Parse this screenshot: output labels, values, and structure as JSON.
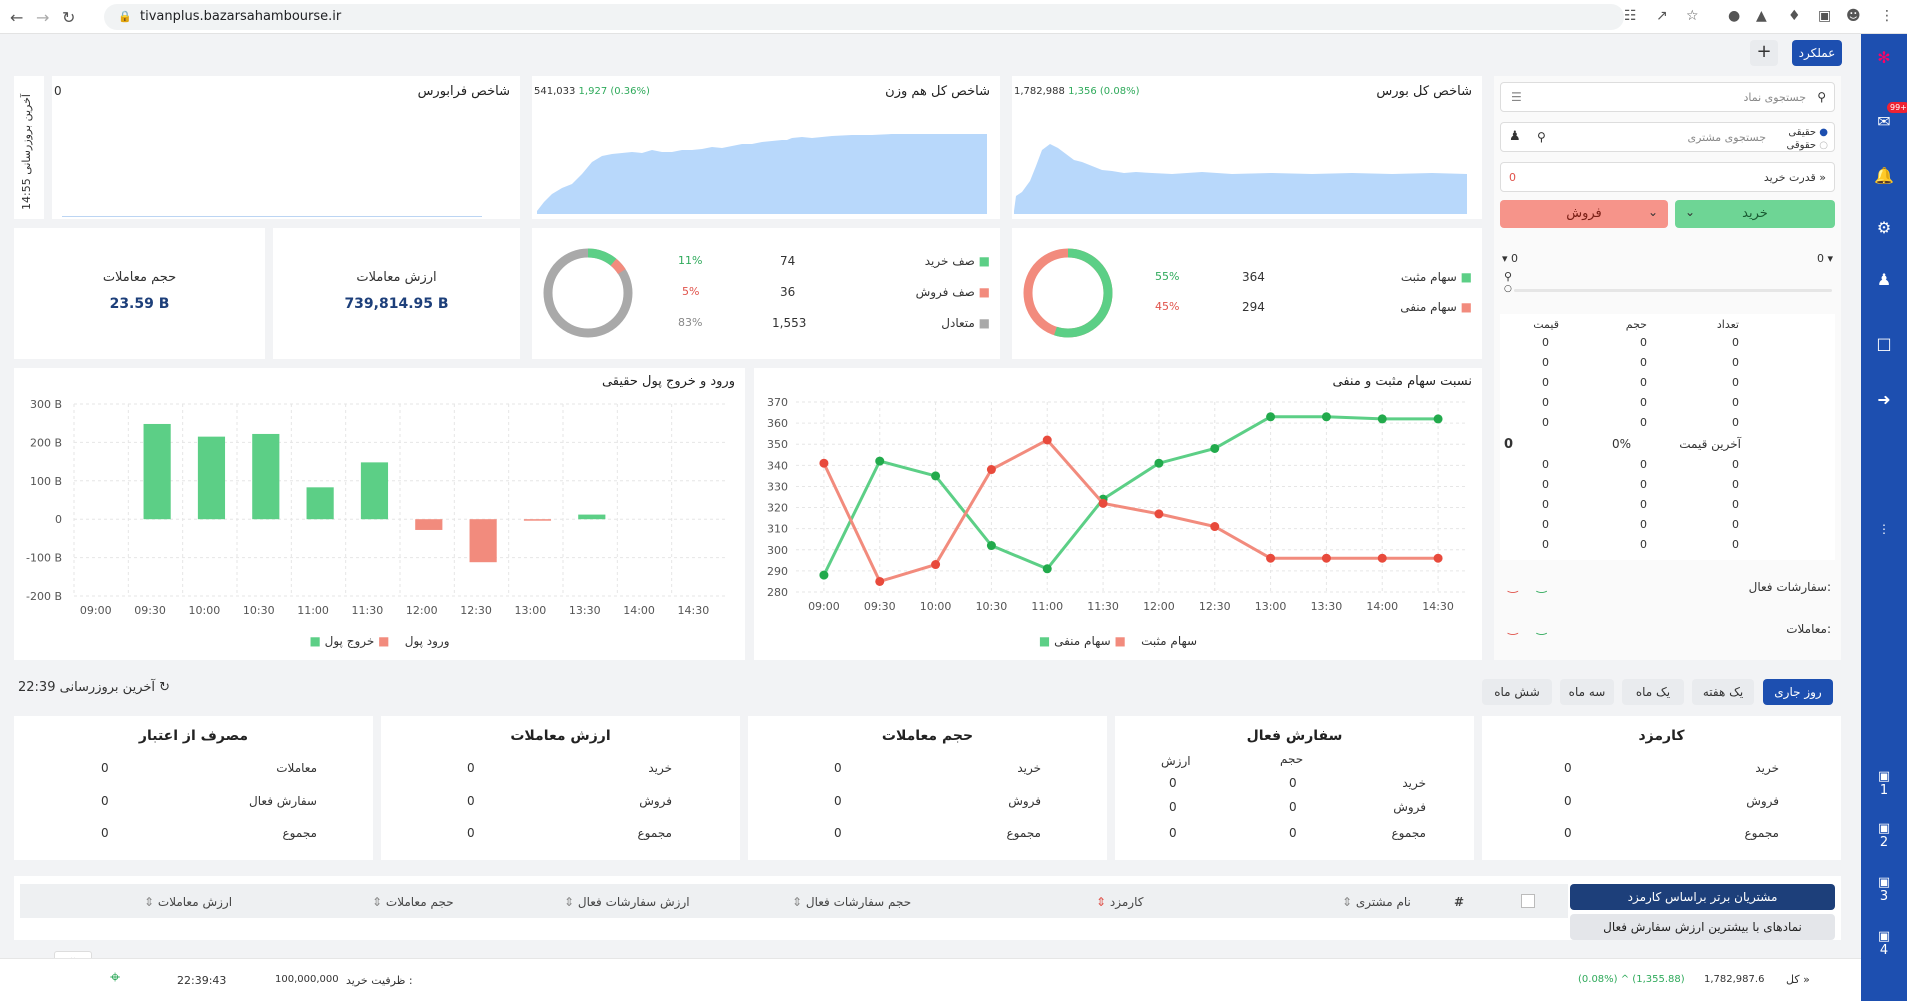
{
  "browser": {
    "url": "tivanplus.bazarsahambourse.ir"
  },
  "top": {
    "amalkard": "عملکرد",
    "plus": "+"
  },
  "sidebar": {
    "badge": "99+",
    "monitors": [
      "1",
      "2",
      "3",
      "4"
    ]
  },
  "indices": {
    "kol": {
      "title": "شاخص کل بورس",
      "value": "1,782,988",
      "change": "1,356 (0.08%)"
    },
    "hamvazn": {
      "title": "شاخص کل هم وزن",
      "value": "541,033",
      "change": "1,927 (0.36%)"
    },
    "farabourse": {
      "title": "شاخص فرابورس",
      "value": "0",
      "last_update": "آخرین بروزرسانی",
      "time": "14:55"
    }
  },
  "breadth": {
    "pos_label": "سهام مثبت",
    "pos_count": "364",
    "pos_pct": "55%",
    "neg_label": "سهام منفی",
    "neg_count": "294",
    "neg_pct": "45%",
    "pos_share": 0.55
  },
  "queues": {
    "buy_label": "صف خرید",
    "buy_count": "74",
    "buy_pct": "11%",
    "sell_label": "صف فروش",
    "sell_count": "36",
    "sell_pct": "5%",
    "bal_label": "متعادل",
    "bal_count": "1,553",
    "bal_pct": "83%",
    "buy_share": 0.11,
    "sell_share": 0.05
  },
  "trade_value": {
    "label": "ارزش معاملات",
    "value": "739,814.95 B"
  },
  "trade_volume": {
    "label": "حجم معاملات",
    "value": "23.59 B"
  },
  "chart_data": [
    {
      "type": "line",
      "title": "نسبت سهام مثبت و منفی",
      "x": [
        "09:00",
        "09:30",
        "10:00",
        "10:30",
        "11:00",
        "11:30",
        "12:00",
        "12:30",
        "13:00",
        "13:30",
        "14:00",
        "14:30"
      ],
      "yticks": [
        "370",
        "360",
        "350",
        "340",
        "330",
        "320",
        "310",
        "300",
        "290",
        "280"
      ],
      "ylim": [
        280,
        370
      ],
      "series": [
        {
          "name": "سهام مثبت",
          "color": "#5ccf86",
          "values": [
            288,
            342,
            335,
            302,
            291,
            324,
            341,
            348,
            363,
            363,
            362,
            362
          ]
        },
        {
          "name": "سهام منفی",
          "color": "#f28b7d",
          "values": [
            341,
            285,
            293,
            338,
            352,
            322,
            317,
            311,
            296,
            296,
            296,
            296
          ]
        }
      ],
      "legend": "bottom"
    },
    {
      "type": "bar",
      "title": "ورود و خروج پول حقیقی",
      "categories": [
        "09:00",
        "09:30",
        "10:00",
        "10:30",
        "11:00",
        "11:30",
        "12:00",
        "12:30",
        "13:00",
        "13:30",
        "14:00",
        "14:30"
      ],
      "yticks": [
        "300 B",
        "200 B",
        "100 B",
        "0",
        "-100 B",
        "-200 B"
      ],
      "ylim": [
        -200,
        300
      ],
      "series": [
        {
          "name": "ورود پول",
          "color": "#5ccf86",
          "values": [
            0,
            248,
            215,
            222,
            83,
            148,
            0,
            0,
            0,
            12,
            0,
            0
          ]
        },
        {
          "name": "خروج پول",
          "color": "#f28b7d",
          "values": [
            0,
            0,
            0,
            0,
            0,
            0,
            -28,
            -112,
            -3,
            0,
            0,
            0
          ]
        }
      ],
      "legend": "bottom"
    }
  ],
  "right": {
    "search_symbol": "جستجوی نماد",
    "search_client": "جستجوی مشتری",
    "haghighi": "حقیقی",
    "hoghooghi": "حقوقی",
    "buy_power_label": "قدرت خرید",
    "buy_power": "0",
    "buy": "خرید",
    "sell": "فروش",
    "left_val": "0",
    "right_val": "0",
    "ob_headers": [
      "تعداد",
      "حجم",
      "قیمت"
    ],
    "ob_rows": [
      [
        "0",
        "0",
        "0"
      ],
      [
        "0",
        "0",
        "0"
      ],
      [
        "0",
        "0",
        "0"
      ],
      [
        "0",
        "0",
        "0"
      ],
      [
        "0",
        "0",
        "0"
      ]
    ],
    "last_price_label": "آخرین قیمت",
    "last_price": "0",
    "last_pct": "0%",
    "ob_rows2": [
      [
        "0",
        "0",
        "0"
      ],
      [
        "0",
        "0",
        "0"
      ],
      [
        "0",
        "0",
        "0"
      ],
      [
        "0",
        "0",
        "0"
      ],
      [
        "0",
        "0",
        "0"
      ]
    ],
    "active_orders": "سفارشات فعال:",
    "trades": "معاملات:"
  },
  "periods": {
    "current_day": "روز جاری",
    "week": "یک هفته",
    "month": "یک ماه",
    "three": "سه ماه",
    "six": "شش ماه"
  },
  "refresh": {
    "label": "آخرین بروزرسانی",
    "time": "22:39"
  },
  "summary": {
    "fee": {
      "title": "کارمزد",
      "buy": "خرید",
      "sell": "فروش",
      "total": "مجموع",
      "v1": "0",
      "v2": "0",
      "v3": "0"
    },
    "active": {
      "title": "سفارش فعال",
      "vol": "حجم",
      "val": "ارزش",
      "buy": "خرید",
      "sell": "فروش",
      "total": "مجموع",
      "b1": "0",
      "b2": "0",
      "s1": "0",
      "s2": "0",
      "t1": "0",
      "t2": "0"
    },
    "volume": {
      "title": "حجم معاملات",
      "buy": "خرید",
      "sell": "فروش",
      "total": "مجموع",
      "v1": "0",
      "v2": "0",
      "v3": "0"
    },
    "value": {
      "title": "ارزش معاملات",
      "buy": "خرید",
      "sell": "فروش",
      "total": "مجموع",
      "v1": "0",
      "v2": "0",
      "v3": "0"
    },
    "credit": {
      "title": "مصرف از اعتبار",
      "trades": "معاملات",
      "active": "سفارش فعال",
      "total": "مجموع",
      "v1": "0",
      "v2": "0",
      "v3": "0"
    }
  },
  "table": {
    "hash": "#",
    "name": "نام مشتری",
    "fee": "کارمزد",
    "active_vol": "حجم سفارشات فعال",
    "active_val": "ارزش سفارشات فعال",
    "vol": "حجم معاملات",
    "val": "ارزش معاملات",
    "btn_top": "مشتریان برتر براساس کارمزد",
    "btn_symbols": "نمادهای با بیشترین ارزش سفارش فعال"
  },
  "status": {
    "time": "22:39:43",
    "capacity_label": "ظرفیت خرید :",
    "capacity": "100,000,000",
    "kol_label": "کل",
    "kol_value": "1,782,987.6",
    "kol_change": "(0.08%) ^ (1,355.88)"
  }
}
